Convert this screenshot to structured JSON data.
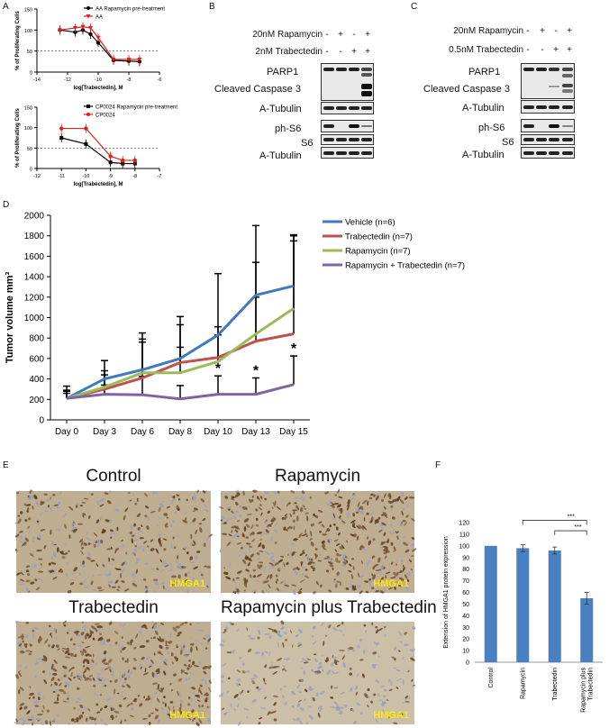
{
  "panels": {
    "A": "A",
    "B": "B",
    "C": "C",
    "D": "D",
    "E": "E",
    "F": "F"
  },
  "colors": {
    "black": "#000000",
    "red": "#e0201b",
    "blue": "#3f7ac1",
    "redline": "#c0504d",
    "green": "#9bbb59",
    "purple": "#8064a2",
    "bar": "#4a7fc1",
    "hmga1": "#ffeb00"
  },
  "chart_data": [
    {
      "id": "A-top",
      "type": "line",
      "xlabel": "log[Trabectedin], M",
      "ylabel": "% of Proliferating Cells",
      "xlim": [
        -14,
        -6
      ],
      "ylim": [
        0,
        150
      ],
      "xticks": [
        -14,
        -12,
        -10,
        -8,
        -6
      ],
      "yticks": [
        0,
        50,
        100,
        150
      ],
      "reference_line": 50,
      "series": [
        {
          "name": "AA Rapamycin pre-treatment",
          "marker": "circle",
          "color": "#000000",
          "x": [
            -12.5,
            -11.5,
            -11,
            -10.5,
            -10,
            -9,
            -8,
            -7.3
          ],
          "y": [
            100,
            95,
            100,
            90,
            70,
            28,
            26,
            25
          ]
        },
        {
          "name": "AA",
          "marker": "triangle-down",
          "color": "#e0201b",
          "x": [
            -12.5,
            -11.5,
            -11,
            -10.5,
            -10,
            -9,
            -8,
            -7.3
          ],
          "y": [
            100,
            105,
            108,
            105,
            82,
            30,
            30,
            30
          ]
        }
      ]
    },
    {
      "id": "A-bottom",
      "type": "line",
      "xlabel": "log[Trabectedin], M",
      "ylabel": "% of Proliferating Cells",
      "xlim": [
        -12,
        -7
      ],
      "ylim": [
        0,
        150
      ],
      "xticks": [
        -12,
        -11,
        -10,
        -9,
        -8,
        -7
      ],
      "yticks": [
        0,
        50,
        100,
        150
      ],
      "reference_line": 50,
      "series": [
        {
          "name": "CP0024 Rapamycin pre-treatment",
          "marker": "square",
          "color": "#000000",
          "x": [
            -11,
            -10,
            -9,
            -8.5,
            -8
          ],
          "y": [
            75,
            60,
            15,
            12,
            12
          ]
        },
        {
          "name": "CP0024",
          "marker": "circle",
          "color": "#e0201b",
          "x": [
            -11,
            -10,
            -9,
            -8.5,
            -8
          ],
          "y": [
            98,
            98,
            30,
            20,
            20
          ]
        }
      ]
    },
    {
      "id": "D",
      "type": "line",
      "xlabel": "",
      "ylabel": "Tumor volume mm³",
      "categories": [
        "Day 0",
        "Day 3",
        "Day 6",
        "Day 8",
        "Day 10",
        "Day 13",
        "Day 15"
      ],
      "ylim": [
        0,
        2000
      ],
      "yticks": [
        0,
        200,
        400,
        600,
        800,
        1000,
        1200,
        1400,
        1600,
        1800,
        2000
      ],
      "series": [
        {
          "name": "Vehicle (n=6)",
          "color": "#3f7ac1",
          "values": [
            210,
            400,
            490,
            600,
            830,
            1220,
            1310
          ],
          "errors": [
            120,
            180,
            300,
            330,
            600,
            680,
            500
          ]
        },
        {
          "name": "Trabectedin (n=7)",
          "color": "#c0504d",
          "values": [
            210,
            300,
            410,
            560,
            610,
            770,
            840
          ],
          "errors": [
            80,
            180,
            440,
            450,
            220,
            430,
            960
          ]
        },
        {
          "name": "Rapamycin (n=7)",
          "color": "#9bbb59",
          "values": [
            210,
            320,
            460,
            460,
            570,
            840,
            1090
          ],
          "errors": [
            70,
            120,
            300,
            250,
            340,
            700,
            660
          ]
        },
        {
          "name": "Rapamycin + Trabectedin (n=7)",
          "color": "#8064a2",
          "values": [
            210,
            250,
            245,
            205,
            250,
            250,
            345
          ],
          "errors": [
            50,
            90,
            180,
            130,
            180,
            160,
            280
          ]
        }
      ],
      "annotations": [
        {
          "x": "Day 10",
          "text": "*"
        },
        {
          "x": "Day 13",
          "text": "*"
        },
        {
          "x": "Day 15",
          "text": "*"
        }
      ]
    },
    {
      "id": "F",
      "type": "bar",
      "ylabel": "Extension of HMGA1 protein expression",
      "categories": [
        "Control",
        "Rapamycin",
        "Trabectedin",
        "Rapamycin plus Trabectedin"
      ],
      "values": [
        100,
        98,
        96,
        55
      ],
      "errors": [
        0,
        3,
        3,
        5
      ],
      "ylim": [
        0,
        120
      ],
      "yticks": [
        0,
        10,
        20,
        30,
        40,
        50,
        60,
        70,
        80,
        90,
        100,
        110,
        120
      ],
      "significance": [
        {
          "from": "Rapamycin",
          "to": "Rapamycin plus Trabectedin",
          "text": "***"
        },
        {
          "from": "Trabectedin",
          "to": "Rapamycin plus Trabectedin",
          "text": "***"
        }
      ]
    }
  ],
  "westernB": {
    "head": [
      "20nM Rapamycin",
      "2nM Trabectedin"
    ],
    "symbols": [
      [
        "-",
        "+",
        "-",
        "+"
      ],
      [
        "-",
        "-",
        "+",
        "+"
      ]
    ],
    "labels": [
      "PARP1",
      "Cleaved Caspase 3",
      "A-Tubulin",
      "ph-S6",
      "S6",
      "A-Tubulin"
    ]
  },
  "westernC": {
    "head": [
      "20nM Rapamycin",
      "0.5nM Trabectedin"
    ],
    "symbols": [
      [
        "-",
        "+",
        "-",
        "+"
      ],
      [
        "-",
        "-",
        "+",
        "+"
      ]
    ],
    "labels": [
      "PARP1",
      "Cleaved Caspase 3",
      "A-Tubulin",
      "ph-S6",
      "S6",
      "A-Tubulin"
    ]
  },
  "micro": {
    "titles": [
      "Control",
      "Rapamycin",
      "Trabectedin",
      "Rapamycin plus Trabectedin"
    ],
    "stain": "HMGA1"
  }
}
